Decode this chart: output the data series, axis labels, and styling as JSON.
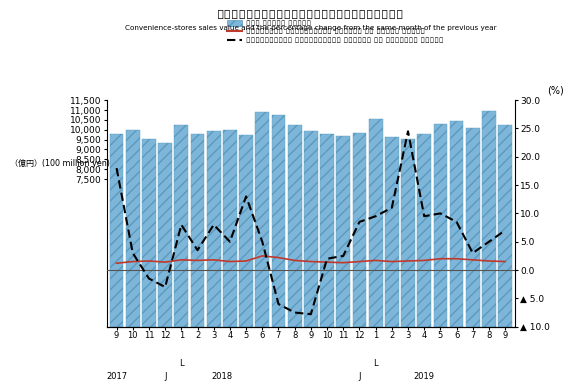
{
  "title_ja": "コンビニエンスストア販売額・前年同月比増減率の推移",
  "title_en": "Convenience-stores sales value and the percentage change from the same month of the previous year",
  "ylabel_left": "（億円）(100 million yen)",
  "ylabel_right": "(%)",
  "x_labels": [
    "9",
    "10",
    "11",
    "12",
    "1",
    "2",
    "3",
    "4",
    "5",
    "6",
    "7",
    "8",
    "9",
    "10",
    "11",
    "12",
    "1",
    "2",
    "3",
    "4",
    "5",
    "6",
    "7",
    "8",
    "9"
  ],
  "bar_values": [
    9780,
    10000,
    9510,
    9330,
    10260,
    9760,
    9950,
    9990,
    9750,
    10900,
    10750,
    10240,
    9950,
    9790,
    9700,
    9820,
    10560,
    9650,
    9530,
    9790,
    10270,
    10430,
    10100,
    10940,
    10230
  ],
  "goods_pct": [
    1.2,
    1.5,
    1.6,
    1.4,
    1.8,
    1.7,
    1.8,
    1.5,
    1.6,
    2.5,
    2.2,
    1.7,
    1.5,
    1.4,
    1.3,
    1.5,
    1.7,
    1.5,
    1.6,
    1.7,
    2.0,
    2.0,
    1.8,
    1.6,
    1.5
  ],
  "service_pct": [
    18.0,
    3.0,
    -1.5,
    -3.0,
    8.0,
    3.5,
    8.0,
    5.0,
    13.0,
    5.0,
    -6.0,
    -7.5,
    -7.8,
    2.0,
    2.5,
    8.5,
    9.5,
    11.0,
    24.5,
    9.5,
    10.0,
    8.5,
    3.0,
    5.0,
    7.0
  ],
  "bar_color": "#7EB6D9",
  "bar_edge_color": "#5a9abf",
  "goods_color": "#C0392B",
  "service_color": "#000000",
  "zero_line_color": "#555555",
  "ylim_left": [
    0,
    11500
  ],
  "ylim_right": [
    -10,
    30
  ],
  "yticks_left": [
    7500,
    8000,
    8500,
    9000,
    9500,
    10000,
    10500,
    11000,
    11500
  ],
  "yticks_right": [
    -10.0,
    -5.0,
    0.0,
    5.0,
    10.0,
    15.0,
    20.0,
    25.0,
    30.0
  ],
  "background_color": "#ffffff"
}
